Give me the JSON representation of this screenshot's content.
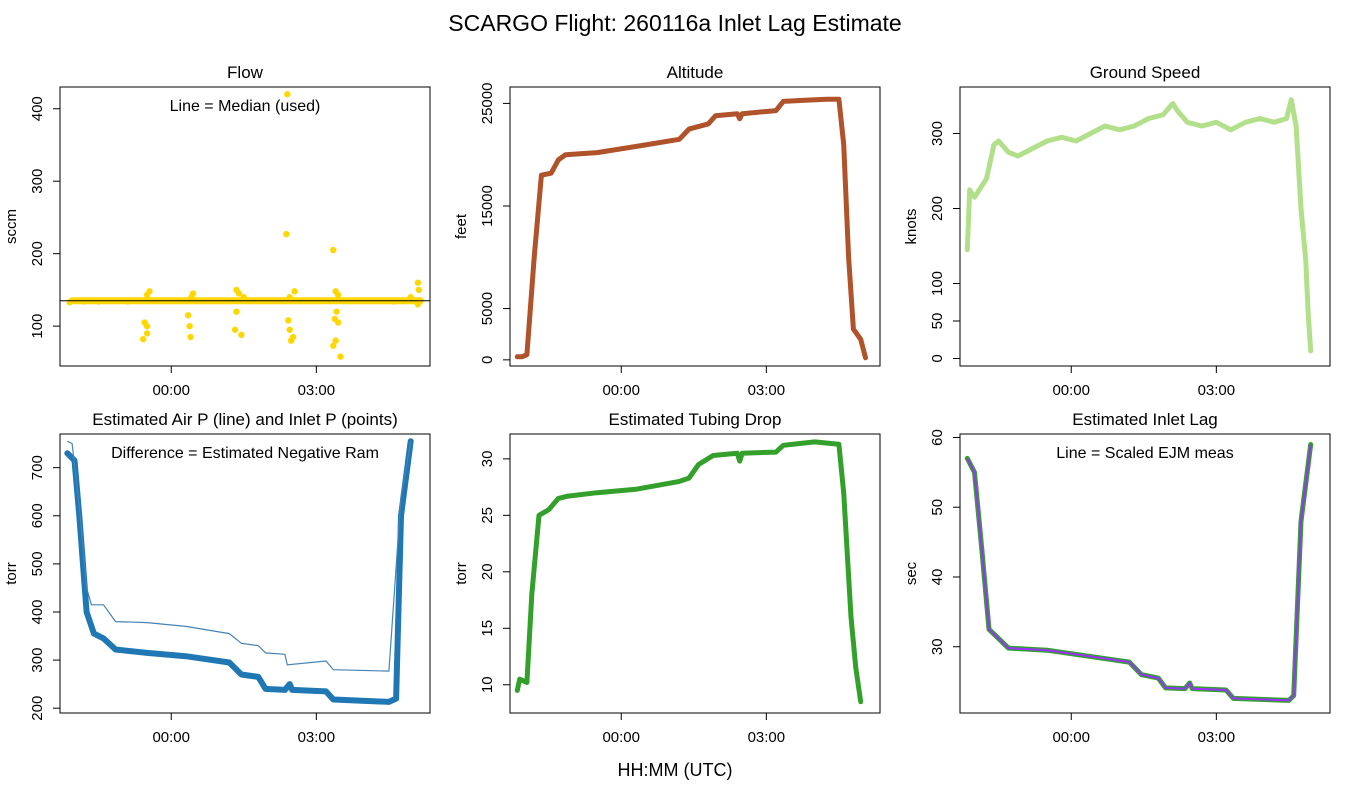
{
  "title": "SCARGO Flight: 260116a  Inlet Lag Estimate",
  "xlabel": "HH:MM (UTC)",
  "chart_data": [
    {
      "id": "flow",
      "type": "scatter",
      "title": "Flow",
      "annotation": "Line = Median (used)",
      "xlabel": "",
      "ylabel": "sccm",
      "xticks": [
        "00:00",
        "03:00"
      ],
      "yticks": [
        100,
        200,
        300,
        400
      ],
      "ylim": [
        45,
        430
      ],
      "xlim_hours": [
        -2.3,
        5.35
      ],
      "median_line": 135,
      "colors": {
        "points": "#FFD700",
        "line": "#000000"
      },
      "series": [
        {
          "values": [
            {
              "x": -2.1,
              "y": 133
            },
            {
              "x": -1.8,
              "y": 134
            },
            {
              "x": -1.5,
              "y": 134
            },
            {
              "x": -1.2,
              "y": 135
            },
            {
              "x": -0.9,
              "y": 134
            },
            {
              "x": -0.6,
              "y": 135
            },
            {
              "x": -0.5,
              "y": 100
            },
            {
              "x": -0.55,
              "y": 105
            },
            {
              "x": -0.58,
              "y": 82
            },
            {
              "x": -0.5,
              "y": 90
            },
            {
              "x": -0.45,
              "y": 148
            },
            {
              "x": -0.5,
              "y": 143
            },
            {
              "x": -0.3,
              "y": 135
            },
            {
              "x": 0.0,
              "y": 135
            },
            {
              "x": 0.35,
              "y": 115
            },
            {
              "x": 0.38,
              "y": 100
            },
            {
              "x": 0.4,
              "y": 85
            },
            {
              "x": 0.45,
              "y": 145
            },
            {
              "x": 0.42,
              "y": 140
            },
            {
              "x": 0.7,
              "y": 135
            },
            {
              "x": 1.0,
              "y": 135
            },
            {
              "x": 1.35,
              "y": 150
            },
            {
              "x": 1.4,
              "y": 145
            },
            {
              "x": 1.35,
              "y": 120
            },
            {
              "x": 1.32,
              "y": 95
            },
            {
              "x": 1.45,
              "y": 88
            },
            {
              "x": 1.5,
              "y": 140
            },
            {
              "x": 1.8,
              "y": 135
            },
            {
              "x": 2.1,
              "y": 135
            },
            {
              "x": 2.38,
              "y": 227
            },
            {
              "x": 2.4,
              "y": 420
            },
            {
              "x": 2.42,
              "y": 108
            },
            {
              "x": 2.45,
              "y": 95
            },
            {
              "x": 2.48,
              "y": 80
            },
            {
              "x": 2.52,
              "y": 85
            },
            {
              "x": 2.55,
              "y": 148
            },
            {
              "x": 2.45,
              "y": 140
            },
            {
              "x": 2.8,
              "y": 135
            },
            {
              "x": 3.1,
              "y": 135
            },
            {
              "x": 3.35,
              "y": 205
            },
            {
              "x": 3.4,
              "y": 148
            },
            {
              "x": 3.42,
              "y": 120
            },
            {
              "x": 3.38,
              "y": 110
            },
            {
              "x": 3.45,
              "y": 105
            },
            {
              "x": 3.4,
              "y": 80
            },
            {
              "x": 3.35,
              "y": 73
            },
            {
              "x": 3.5,
              "y": 58
            },
            {
              "x": 3.45,
              "y": 143
            },
            {
              "x": 3.8,
              "y": 135
            },
            {
              "x": 4.2,
              "y": 135
            },
            {
              "x": 4.6,
              "y": 134
            },
            {
              "x": 4.95,
              "y": 140
            },
            {
              "x": 5.1,
              "y": 160
            },
            {
              "x": 5.12,
              "y": 150
            },
            {
              "x": 5.1,
              "y": 130
            }
          ]
        }
      ]
    },
    {
      "id": "altitude",
      "type": "line",
      "title": "Altitude",
      "xlabel": "",
      "ylabel": "feet",
      "xticks": [
        "00:00",
        "03:00"
      ],
      "yticks": [
        0,
        5000,
        15000,
        25000
      ],
      "ylim": [
        -600,
        26600
      ],
      "xlim_hours": [
        -2.3,
        5.35
      ],
      "colors": {
        "line": "#B0522A"
      },
      "series": [
        {
          "values": [
            {
              "x": -2.15,
              "y": 300
            },
            {
              "x": -2.05,
              "y": 300
            },
            {
              "x": -1.95,
              "y": 500
            },
            {
              "x": -1.8,
              "y": 10000
            },
            {
              "x": -1.65,
              "y": 18000
            },
            {
              "x": -1.45,
              "y": 18200
            },
            {
              "x": -1.3,
              "y": 19500
            },
            {
              "x": -1.15,
              "y": 20000
            },
            {
              "x": -0.5,
              "y": 20200
            },
            {
              "x": 0.3,
              "y": 20800
            },
            {
              "x": 1.2,
              "y": 21500
            },
            {
              "x": 1.4,
              "y": 22500
            },
            {
              "x": 1.8,
              "y": 23000
            },
            {
              "x": 1.95,
              "y": 23800
            },
            {
              "x": 2.4,
              "y": 24000
            },
            {
              "x": 2.45,
              "y": 23500
            },
            {
              "x": 2.5,
              "y": 24000
            },
            {
              "x": 3.2,
              "y": 24300
            },
            {
              "x": 3.35,
              "y": 25200
            },
            {
              "x": 3.8,
              "y": 25300
            },
            {
              "x": 4.25,
              "y": 25400
            },
            {
              "x": 4.5,
              "y": 25400
            },
            {
              "x": 4.6,
              "y": 21000
            },
            {
              "x": 4.7,
              "y": 10000
            },
            {
              "x": 4.8,
              "y": 3000
            },
            {
              "x": 4.95,
              "y": 2000
            },
            {
              "x": 5.05,
              "y": 200
            }
          ]
        }
      ]
    },
    {
      "id": "ground-speed",
      "type": "line",
      "title": "Ground Speed",
      "xlabel": "",
      "ylabel": "knots",
      "xticks": [
        "00:00",
        "03:00"
      ],
      "yticks": [
        0,
        50,
        100,
        200,
        300
      ],
      "ylim": [
        -10,
        362
      ],
      "xlim_hours": [
        -2.3,
        5.35
      ],
      "colors": {
        "line": "#B2DF8A"
      },
      "series": [
        {
          "values": [
            {
              "x": -2.15,
              "y": 145
            },
            {
              "x": -2.1,
              "y": 225
            },
            {
              "x": -2.0,
              "y": 215
            },
            {
              "x": -1.9,
              "y": 225
            },
            {
              "x": -1.75,
              "y": 240
            },
            {
              "x": -1.6,
              "y": 285
            },
            {
              "x": -1.5,
              "y": 290
            },
            {
              "x": -1.3,
              "y": 275
            },
            {
              "x": -1.1,
              "y": 270
            },
            {
              "x": -0.8,
              "y": 280
            },
            {
              "x": -0.5,
              "y": 290
            },
            {
              "x": -0.2,
              "y": 295
            },
            {
              "x": 0.1,
              "y": 290
            },
            {
              "x": 0.4,
              "y": 300
            },
            {
              "x": 0.7,
              "y": 310
            },
            {
              "x": 1.0,
              "y": 305
            },
            {
              "x": 1.3,
              "y": 310
            },
            {
              "x": 1.6,
              "y": 320
            },
            {
              "x": 1.9,
              "y": 325
            },
            {
              "x": 2.1,
              "y": 340
            },
            {
              "x": 2.2,
              "y": 330
            },
            {
              "x": 2.4,
              "y": 315
            },
            {
              "x": 2.7,
              "y": 310
            },
            {
              "x": 3.0,
              "y": 315
            },
            {
              "x": 3.3,
              "y": 305
            },
            {
              "x": 3.6,
              "y": 315
            },
            {
              "x": 3.9,
              "y": 320
            },
            {
              "x": 4.2,
              "y": 315
            },
            {
              "x": 4.45,
              "y": 320
            },
            {
              "x": 4.55,
              "y": 345
            },
            {
              "x": 4.65,
              "y": 310
            },
            {
              "x": 4.75,
              "y": 200
            },
            {
              "x": 4.85,
              "y": 130
            },
            {
              "x": 4.9,
              "y": 60
            },
            {
              "x": 4.95,
              "y": 10
            }
          ]
        }
      ]
    },
    {
      "id": "inlet-pressure",
      "type": "line",
      "title": "Estimated Air P (line) and Inlet P (points)",
      "annotation": "Difference = Estimated Negative Ram",
      "xlabel": "",
      "ylabel": "torr",
      "xticks": [
        "00:00",
        "03:00"
      ],
      "yticks": [
        200,
        300,
        400,
        500,
        600,
        700
      ],
      "ylim": [
        190,
        770
      ],
      "xlim_hours": [
        -2.3,
        5.35
      ],
      "colors": {
        "line": "#4682B4",
        "points": "#1F78B4"
      },
      "series": [
        {
          "name": "Air P",
          "values": [
            {
              "x": -2.15,
              "y": 755
            },
            {
              "x": -2.05,
              "y": 750
            },
            {
              "x": -1.9,
              "y": 620
            },
            {
              "x": -1.75,
              "y": 450
            },
            {
              "x": -1.65,
              "y": 415
            },
            {
              "x": -1.4,
              "y": 415
            },
            {
              "x": -1.15,
              "y": 380
            },
            {
              "x": -0.5,
              "y": 378
            },
            {
              "x": 0.3,
              "y": 370
            },
            {
              "x": 1.2,
              "y": 355
            },
            {
              "x": 1.45,
              "y": 335
            },
            {
              "x": 1.8,
              "y": 330
            },
            {
              "x": 1.95,
              "y": 315
            },
            {
              "x": 2.35,
              "y": 312
            },
            {
              "x": 2.4,
              "y": 290
            },
            {
              "x": 3.2,
              "y": 298
            },
            {
              "x": 3.35,
              "y": 280
            },
            {
              "x": 4.5,
              "y": 277
            },
            {
              "x": 4.75,
              "y": 640
            },
            {
              "x": 4.95,
              "y": 755
            }
          ]
        },
        {
          "name": "Inlet P",
          "values": [
            {
              "x": -2.15,
              "y": 730
            },
            {
              "x": -2.0,
              "y": 715
            },
            {
              "x": -1.9,
              "y": 600
            },
            {
              "x": -1.75,
              "y": 400
            },
            {
              "x": -1.6,
              "y": 355
            },
            {
              "x": -1.4,
              "y": 345
            },
            {
              "x": -1.15,
              "y": 322
            },
            {
              "x": -0.5,
              "y": 315
            },
            {
              "x": 0.3,
              "y": 308
            },
            {
              "x": 1.2,
              "y": 295
            },
            {
              "x": 1.45,
              "y": 270
            },
            {
              "x": 1.8,
              "y": 265
            },
            {
              "x": 1.95,
              "y": 240
            },
            {
              "x": 2.35,
              "y": 238
            },
            {
              "x": 2.45,
              "y": 250
            },
            {
              "x": 2.5,
              "y": 238
            },
            {
              "x": 3.2,
              "y": 235
            },
            {
              "x": 3.35,
              "y": 218
            },
            {
              "x": 4.5,
              "y": 213
            },
            {
              "x": 4.65,
              "y": 220
            },
            {
              "x": 4.75,
              "y": 600
            },
            {
              "x": 4.95,
              "y": 755
            }
          ]
        }
      ]
    },
    {
      "id": "tubing-drop",
      "type": "line",
      "title": "Estimated Tubing Drop",
      "xlabel": "",
      "ylabel": "torr",
      "xticks": [
        "00:00",
        "03:00"
      ],
      "yticks": [
        10,
        15,
        20,
        25,
        30
      ],
      "ylim": [
        7.5,
        32.2
      ],
      "xlim_hours": [
        -2.3,
        5.35
      ],
      "colors": {
        "line": "#33A02C"
      },
      "series": [
        {
          "values": [
            {
              "x": -2.15,
              "y": 9.5
            },
            {
              "x": -2.1,
              "y": 10.5
            },
            {
              "x": -1.95,
              "y": 10.2
            },
            {
              "x": -1.85,
              "y": 18
            },
            {
              "x": -1.7,
              "y": 25
            },
            {
              "x": -1.5,
              "y": 25.5
            },
            {
              "x": -1.3,
              "y": 26.5
            },
            {
              "x": -1.1,
              "y": 26.7
            },
            {
              "x": -0.5,
              "y": 27
            },
            {
              "x": 0.3,
              "y": 27.3
            },
            {
              "x": 1.2,
              "y": 28
            },
            {
              "x": 1.4,
              "y": 28.3
            },
            {
              "x": 1.6,
              "y": 29.5
            },
            {
              "x": 1.9,
              "y": 30.3
            },
            {
              "x": 2.4,
              "y": 30.5
            },
            {
              "x": 2.45,
              "y": 29.8
            },
            {
              "x": 2.5,
              "y": 30.5
            },
            {
              "x": 3.2,
              "y": 30.6
            },
            {
              "x": 3.35,
              "y": 31.2
            },
            {
              "x": 4.0,
              "y": 31.5
            },
            {
              "x": 4.5,
              "y": 31.3
            },
            {
              "x": 4.6,
              "y": 27
            },
            {
              "x": 4.75,
              "y": 16
            },
            {
              "x": 4.85,
              "y": 11.5
            },
            {
              "x": 4.95,
              "y": 8.5
            }
          ]
        }
      ]
    },
    {
      "id": "inlet-lag",
      "type": "line",
      "title": "Estimated Inlet Lag",
      "annotation": "Line = Scaled EJM meas",
      "xlabel": "",
      "ylabel": "sec",
      "xticks": [
        "00:00",
        "03:00"
      ],
      "yticks": [
        30,
        40,
        50,
        60
      ],
      "ylim": [
        20.5,
        60.5
      ],
      "xlim_hours": [
        -2.3,
        5.35
      ],
      "colors": {
        "line": "#9B30FF",
        "points": "#33A02C"
      },
      "series": [
        {
          "name": "Inlet lag",
          "values": [
            {
              "x": -2.15,
              "y": 57
            },
            {
              "x": -2.0,
              "y": 55
            },
            {
              "x": -1.85,
              "y": 44
            },
            {
              "x": -1.7,
              "y": 32.5
            },
            {
              "x": -1.55,
              "y": 31.5
            },
            {
              "x": -1.3,
              "y": 29.8
            },
            {
              "x": -0.5,
              "y": 29.5
            },
            {
              "x": 0.3,
              "y": 28.7
            },
            {
              "x": 1.2,
              "y": 27.8
            },
            {
              "x": 1.45,
              "y": 26
            },
            {
              "x": 1.8,
              "y": 25.5
            },
            {
              "x": 1.95,
              "y": 24.1
            },
            {
              "x": 2.35,
              "y": 24
            },
            {
              "x": 2.45,
              "y": 24.8
            },
            {
              "x": 2.5,
              "y": 24
            },
            {
              "x": 3.2,
              "y": 23.8
            },
            {
              "x": 3.35,
              "y": 22.6
            },
            {
              "x": 4.5,
              "y": 22.3
            },
            {
              "x": 4.6,
              "y": 23
            },
            {
              "x": 4.75,
              "y": 48
            },
            {
              "x": 4.95,
              "y": 59
            }
          ]
        }
      ]
    }
  ]
}
